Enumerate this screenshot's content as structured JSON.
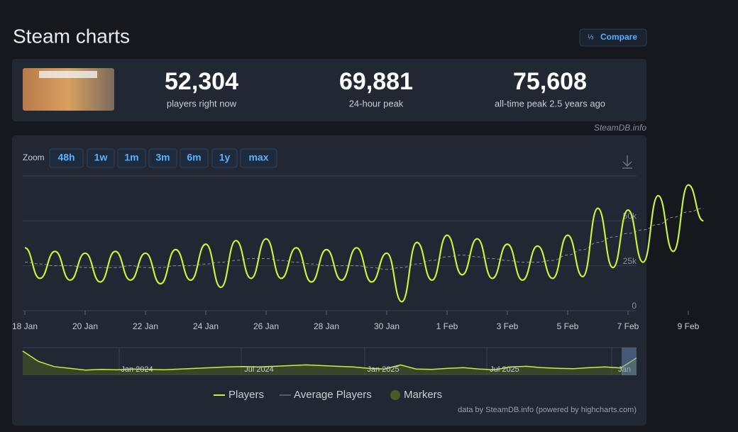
{
  "header": {
    "title": "Steam charts",
    "compare": "Compare"
  },
  "stats": [
    {
      "value": "52,304",
      "label": "players right now"
    },
    {
      "value": "69,881",
      "label": "24-hour peak"
    },
    {
      "value": "75,608",
      "label": "all-time peak 2.5 years ago"
    }
  ],
  "source": "SteamDB.info",
  "zoom": {
    "label": "Zoom",
    "buttons": [
      "48h",
      "1w",
      "1m",
      "3m",
      "6m",
      "1y",
      "max"
    ]
  },
  "chart_data": {
    "type": "line",
    "categories": [
      "18 Jan",
      null,
      null,
      null,
      "20 Jan",
      null,
      null,
      null,
      "22 Jan",
      null,
      null,
      null,
      "24 Jan",
      null,
      null,
      null,
      "26 Jan",
      null,
      null,
      null,
      "28 Jan",
      null,
      null,
      null,
      "30 Jan",
      null,
      null,
      null,
      "1 Feb",
      null,
      null,
      null,
      "3 Feb",
      null,
      null,
      null,
      "5 Feb",
      null,
      null,
      null,
      "7 Feb",
      null,
      null,
      null,
      "9 Feb",
      null
    ],
    "series": [
      {
        "name": "Players",
        "color": "#c8f03c",
        "values": [
          35000,
          18000,
          33000,
          17000,
          32000,
          16000,
          33000,
          17000,
          32000,
          15000,
          34000,
          17000,
          37000,
          13000,
          39000,
          18000,
          40000,
          18000,
          35000,
          16000,
          34000,
          17000,
          35000,
          16000,
          32000,
          5000,
          38000,
          17000,
          42000,
          20000,
          40000,
          18000,
          37000,
          17000,
          36000,
          18000,
          42000,
          19000,
          57000,
          24000,
          56000,
          27000,
          64000,
          33000,
          70000,
          50000
        ]
      },
      {
        "name": "Average Players",
        "color": "#8a8f98",
        "values": [
          27000,
          26000,
          25000,
          25000,
          24000,
          24000,
          24000,
          25000,
          24000,
          24000,
          25000,
          25000,
          26000,
          27000,
          28000,
          29000,
          29000,
          28000,
          27000,
          26000,
          25000,
          25000,
          25000,
          24000,
          23000,
          24000,
          26000,
          28000,
          30000,
          31000,
          30000,
          29000,
          28000,
          27000,
          27000,
          28000,
          31000,
          34000,
          38000,
          41000,
          43000,
          45000,
          48000,
          52000,
          55000,
          57000
        ]
      }
    ],
    "ylim": [
      0,
      75000
    ],
    "yticks": [
      0,
      {
        "value": 25000,
        "label": "25k"
      },
      {
        "value": 50000,
        "label": "50k"
      }
    ],
    "grid": true,
    "markers": {
      "name": "Markers",
      "color": "#4b5a26"
    },
    "navigator": {
      "ylim": [
        0,
        80000
      ],
      "labels": [
        "Jan 2024",
        "Jul 2024",
        "Jan 2025",
        "Jul 2025",
        "Jan"
      ],
      "values": [
        70000,
        40000,
        25000,
        20000,
        15000,
        17000,
        16000,
        18000,
        17000,
        16000,
        18000,
        20000,
        22000,
        24000,
        25000,
        24000,
        26000,
        28000,
        30000,
        28000,
        26000,
        24000,
        20000,
        18000,
        30000,
        18000,
        17000,
        20000,
        22000,
        18000,
        16000,
        24000,
        26000,
        22000,
        20000,
        19000,
        22000,
        24000,
        21000,
        50000
      ]
    },
    "credits": "data by SteamDB.info (powered by highcharts.com)"
  }
}
